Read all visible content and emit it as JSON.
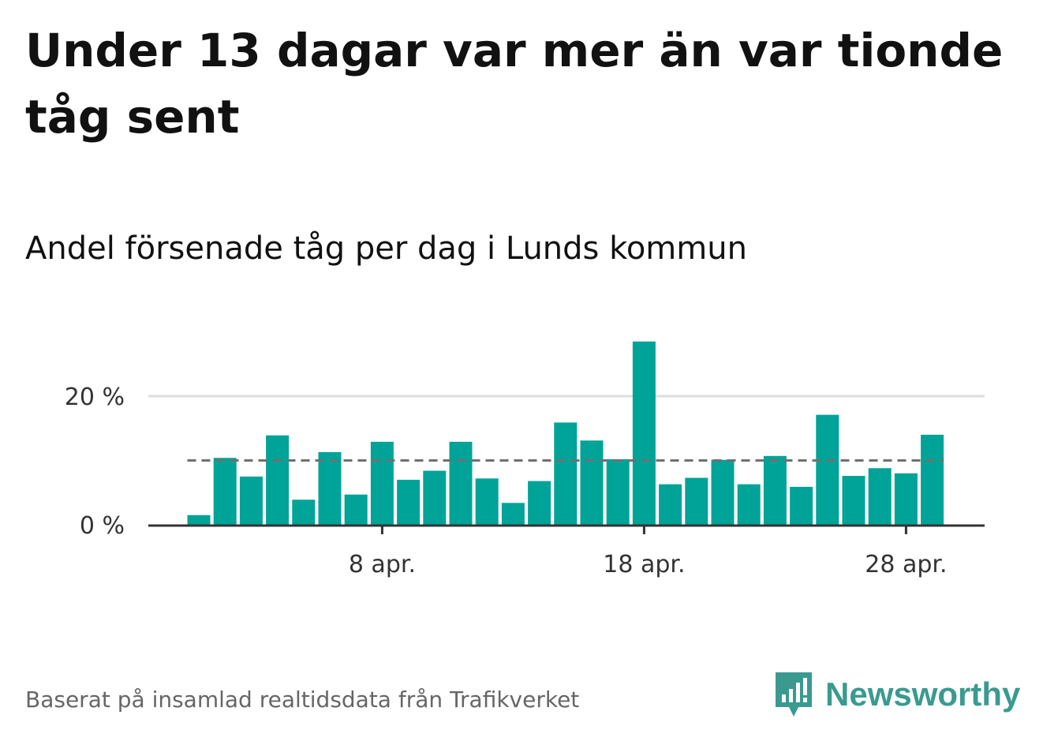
{
  "header": {
    "title": "Under 13 dagar var mer än var tionde tåg sent",
    "subtitle": "Andel försenade tåg per dag i Lunds kommun"
  },
  "footer": {
    "source": "Baserat på insamlad realtidsdata från Trafikverket",
    "brand": "Newsworthy"
  },
  "colors": {
    "bar": "#00a398",
    "average_line": "#707070",
    "grid": "#dddddd",
    "axis": "#333333",
    "brand": "#3a9a90"
  },
  "chart_data": {
    "type": "bar",
    "title": "Andel försenade tåg per dag i Lunds kommun",
    "x": [
      "1 apr.",
      "2 apr.",
      "3 apr.",
      "4 apr.",
      "5 apr.",
      "6 apr.",
      "7 apr.",
      "8 apr.",
      "9 apr.",
      "10 apr.",
      "11 apr.",
      "12 apr.",
      "13 apr.",
      "14 apr.",
      "15 apr.",
      "16 apr.",
      "17 apr.",
      "18 apr.",
      "19 apr.",
      "20 apr.",
      "21 apr.",
      "22 apr.",
      "23 apr.",
      "24 apr.",
      "25 apr.",
      "26 apr.",
      "27 apr.",
      "28 apr.",
      "29 apr."
    ],
    "values": [
      1.5,
      10.4,
      7.5,
      13.9,
      3.9,
      11.3,
      4.7,
      12.9,
      7.0,
      8.4,
      12.9,
      7.2,
      3.4,
      6.8,
      15.9,
      13.1,
      10.2,
      28.5,
      6.3,
      7.3,
      10.1,
      6.3,
      10.7,
      5.9,
      17.1,
      7.6,
      8.8,
      8.0,
      14.0
    ],
    "average": 10.0,
    "ylim": [
      0,
      30
    ],
    "y_ticks": [
      {
        "value": 0,
        "label": "0 %"
      },
      {
        "value": 20,
        "label": "20 %"
      }
    ],
    "x_ticks": [
      {
        "index": 7,
        "label": "8 apr."
      },
      {
        "index": 17,
        "label": "18 apr."
      },
      {
        "index": 27,
        "label": "28 apr."
      }
    ],
    "xlabel": "",
    "ylabel": "",
    "grid": true,
    "legend": "none"
  }
}
